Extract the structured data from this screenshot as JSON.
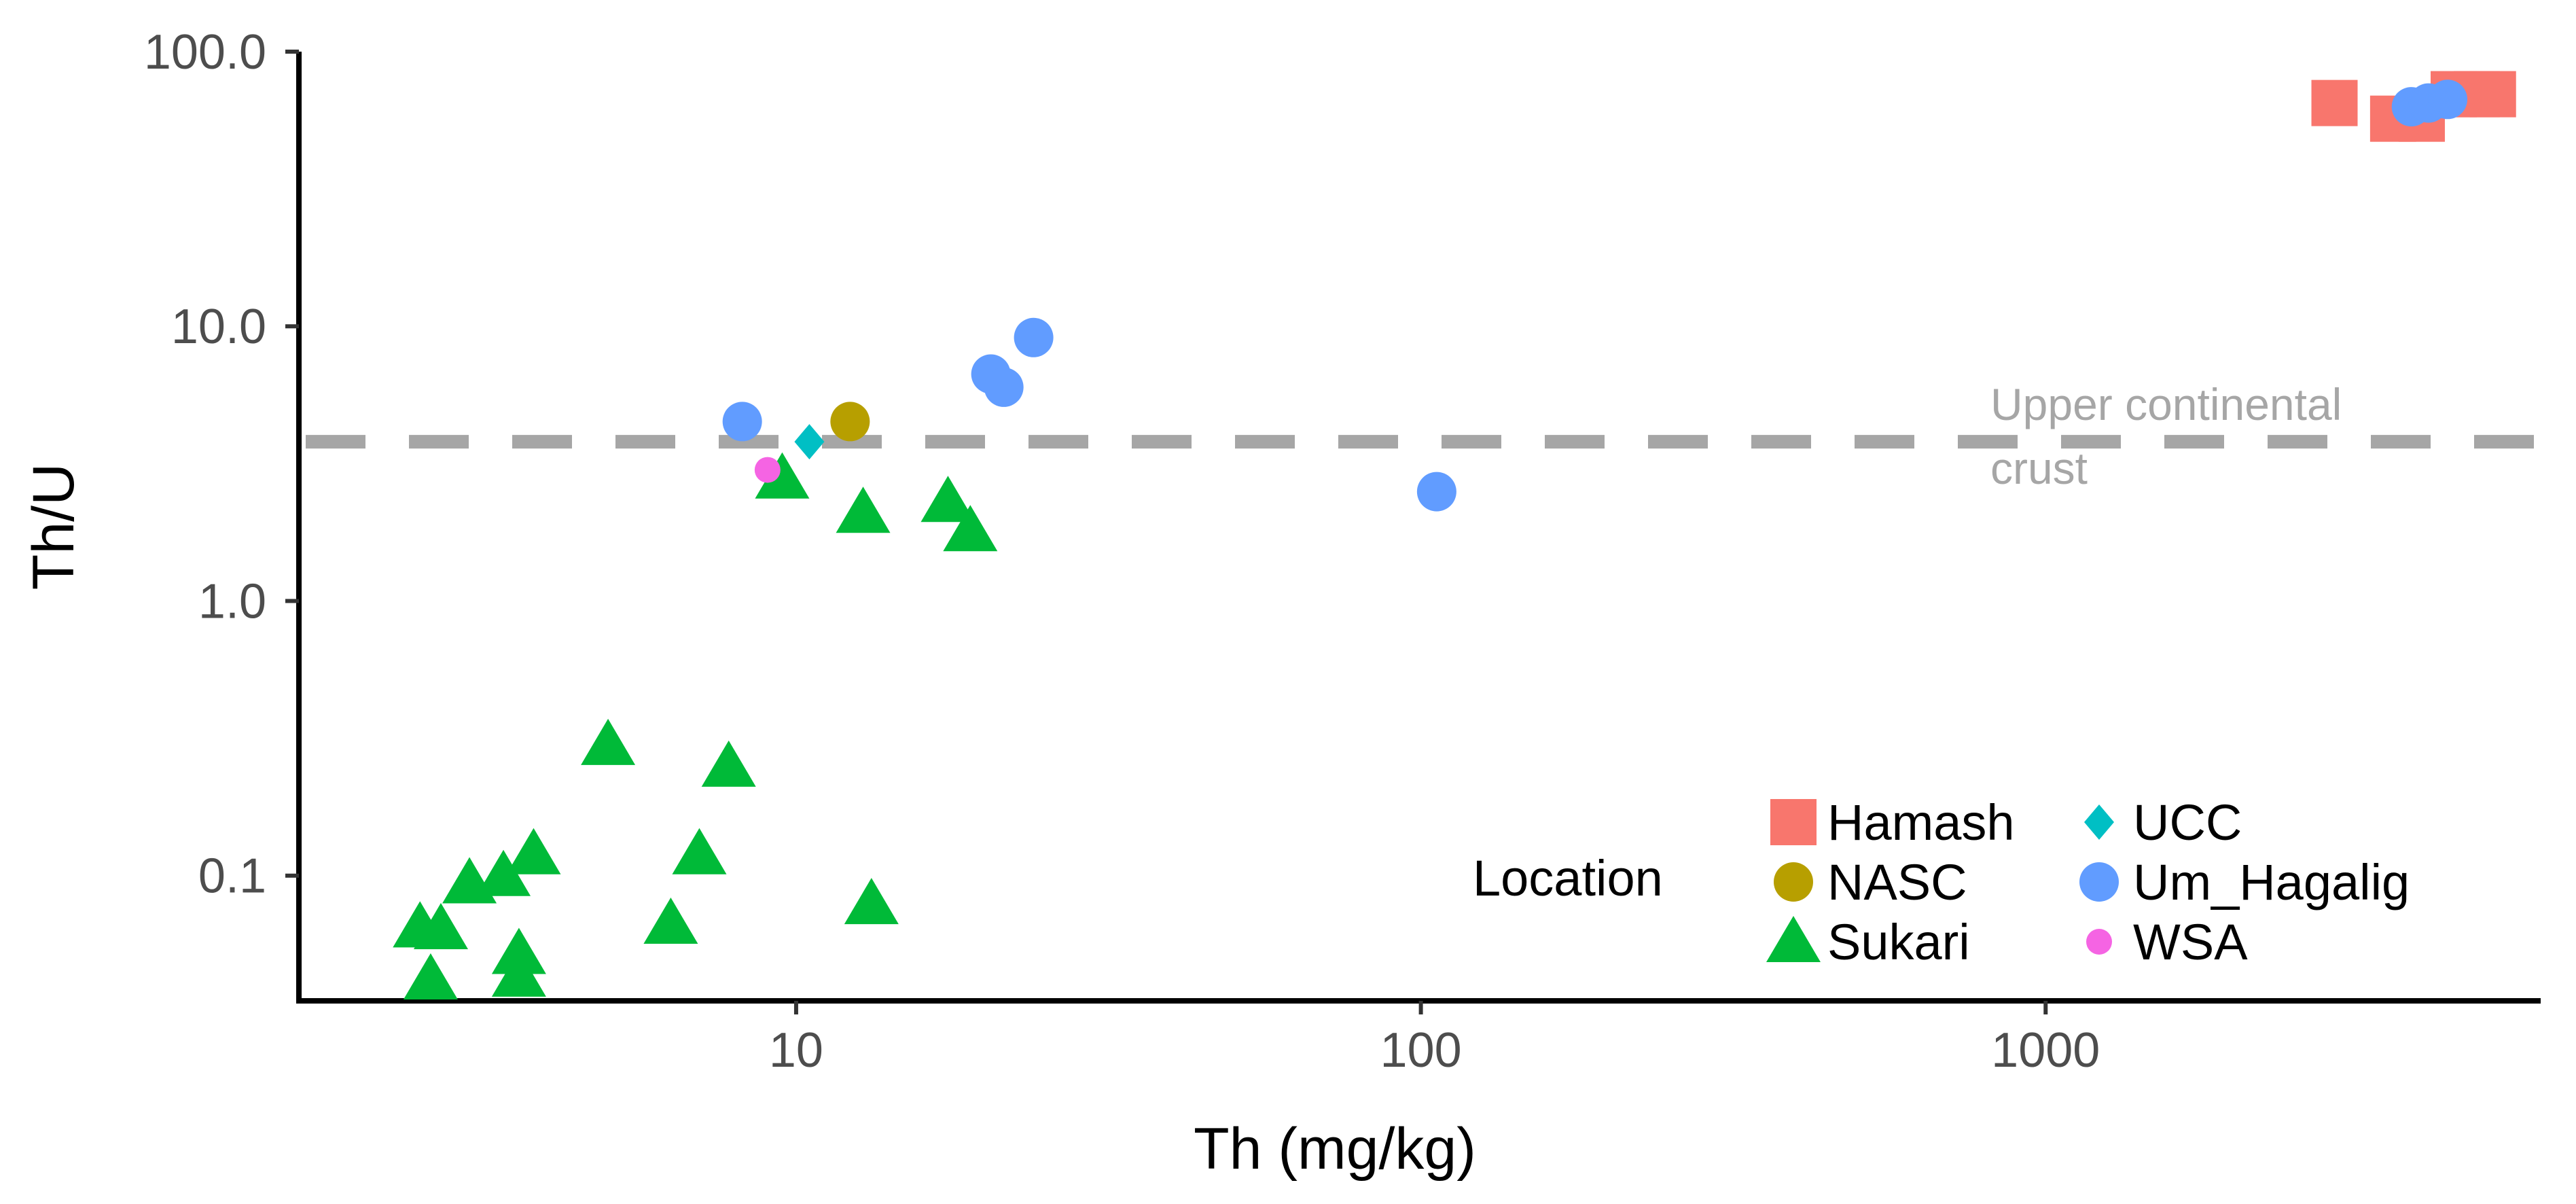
{
  "chart_data": {
    "type": "scatter",
    "xscale": "log",
    "yscale": "log",
    "xlabel": "Th (mg/kg)",
    "ylabel": "Th/U",
    "xlim": [
      1.6,
      6200
    ],
    "ylim": [
      0.035,
      100
    ],
    "x_ticks": [
      10,
      100,
      1000
    ],
    "x_tick_labels": [
      "10",
      "100",
      "1000"
    ],
    "y_ticks": [
      0.1,
      1,
      10,
      100
    ],
    "y_tick_labels": [
      "0.1",
      "1.0",
      "10.0",
      "100.0"
    ],
    "reference_line": {
      "y": 3.8,
      "label_line1": "Upper continental",
      "label_line2": "crust",
      "color": "#a6a6a6"
    },
    "legend": {
      "title": "Location",
      "position": "bottom-right"
    },
    "series": [
      {
        "name": "Hamash",
        "shape": "square",
        "color": "#f8766d",
        "points": [
          [
            2900,
            65
          ],
          [
            3600,
            57
          ],
          [
            4000,
            57
          ],
          [
            4500,
            70
          ],
          [
            4900,
            70
          ],
          [
            5200,
            70
          ]
        ]
      },
      {
        "name": "NASC",
        "shape": "circle",
        "color": "#b79f00",
        "points": [
          [
            12.2,
            4.5
          ]
        ]
      },
      {
        "name": "Sukari",
        "shape": "triangle",
        "color": "#00ba38",
        "points": [
          [
            2.5,
            0.065
          ],
          [
            2.7,
            0.064
          ],
          [
            2.6,
            0.042
          ],
          [
            3.0,
            0.094
          ],
          [
            3.4,
            0.1
          ],
          [
            3.6,
            0.052
          ],
          [
            3.6,
            0.043
          ],
          [
            3.8,
            0.12
          ],
          [
            5.0,
            0.3
          ],
          [
            6.3,
            0.067
          ],
          [
            7.0,
            0.12
          ],
          [
            7.8,
            0.25
          ],
          [
            9.5,
            2.8
          ],
          [
            12.8,
            2.1
          ],
          [
            13.2,
            0.079
          ],
          [
            17.5,
            2.3
          ],
          [
            19.0,
            1.8
          ]
        ]
      },
      {
        "name": "UCC",
        "shape": "diamond",
        "color": "#00bfc4",
        "points": [
          [
            10.5,
            3.8
          ]
        ]
      },
      {
        "name": "Um_Hagalig",
        "shape": "circle",
        "color": "#619cff",
        "points": [
          [
            8.2,
            4.5
          ],
          [
            20.5,
            6.7
          ],
          [
            21.5,
            6.0
          ],
          [
            24.0,
            9.1
          ],
          [
            106,
            2.5
          ],
          [
            3850,
            63
          ],
          [
            4100,
            65
          ],
          [
            4400,
            67
          ]
        ]
      },
      {
        "name": "WSA",
        "shape": "circle_small",
        "color": "#f564e3",
        "points": [
          [
            9.0,
            3.0
          ]
        ]
      }
    ]
  }
}
